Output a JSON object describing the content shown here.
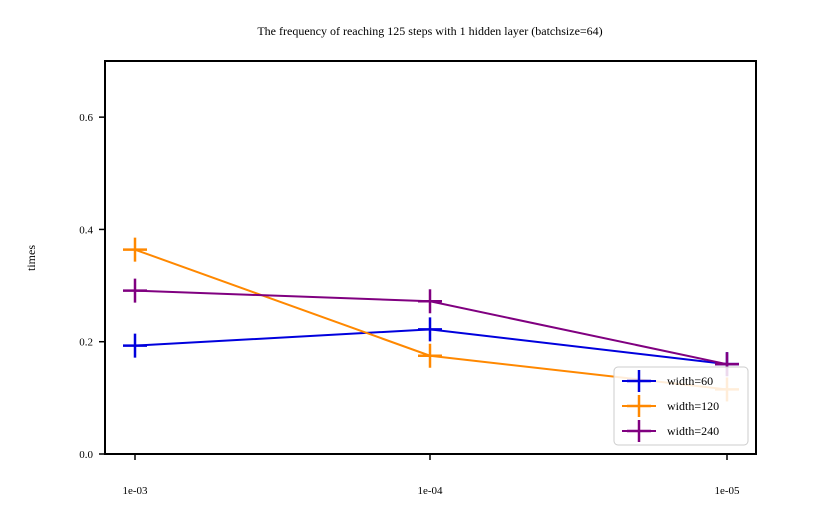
{
  "chart_data": {
    "type": "line",
    "title": "The frequency of reaching 125 steps with 1 hidden layer (batchsize=64)",
    "xlabel": "",
    "ylabel": "times",
    "categories": [
      "1e-03",
      "1e-04",
      "1e-05"
    ],
    "ylim": [
      0.0,
      0.7
    ],
    "yticks": [
      0.0,
      0.2,
      0.4,
      0.6
    ],
    "ytick_labels": [
      "0.0",
      "0.2",
      "0.4",
      "0.6"
    ],
    "grid": false,
    "legend_position": "lower-right",
    "marker": "plus",
    "series": [
      {
        "name": "width=60",
        "color": "#0000dd",
        "values": [
          0.193,
          0.222,
          0.16
        ]
      },
      {
        "name": "width=120",
        "color": "#ff8800",
        "values": [
          0.364,
          0.175,
          0.115
        ]
      },
      {
        "name": "width=240",
        "color": "#800080",
        "values": [
          0.291,
          0.272,
          0.16
        ]
      }
    ]
  }
}
